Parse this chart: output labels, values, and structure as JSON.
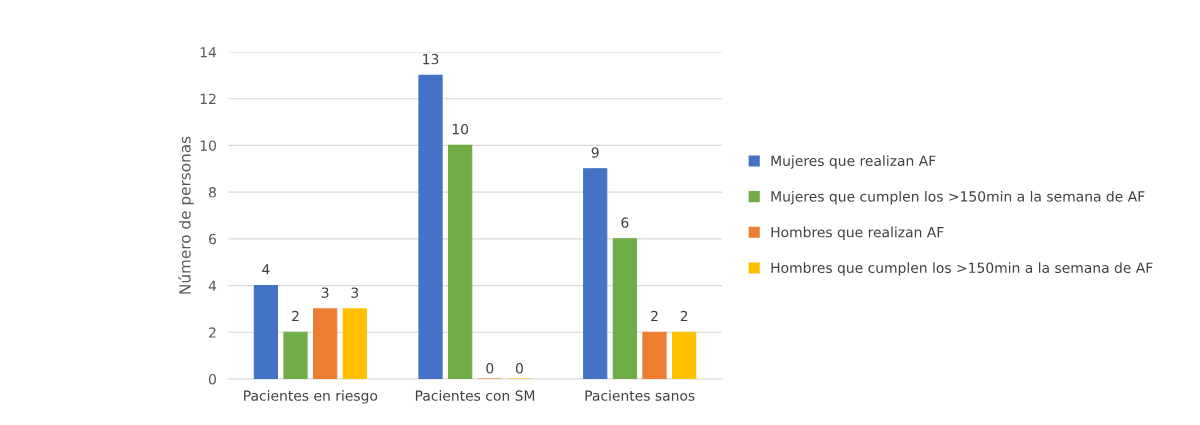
{
  "chart_data": {
    "type": "bar",
    "ylabel": "Número de personas",
    "categories": [
      "Pacientes en riesgo",
      "Pacientes con SM",
      "Pacientes sanos"
    ],
    "series": [
      {
        "name": "Mujeres que realizan AF",
        "color": "#4472c4",
        "values": [
          4,
          13,
          9
        ]
      },
      {
        "name": "Mujeres que cumplen los >150min a la semana de AF",
        "color": "#70ad47",
        "values": [
          2,
          10,
          6
        ]
      },
      {
        "name": "Hombres que realizan AF",
        "color": "#ed7d31",
        "values": [
          3,
          0,
          2
        ]
      },
      {
        "name": "Hombres que cumplen los >150min a la semana de AF",
        "color": "#ffc000",
        "values": [
          3,
          0,
          2
        ]
      }
    ],
    "ylim": [
      0,
      14
    ],
    "yticks": [
      0,
      2,
      4,
      6,
      8,
      10,
      12,
      14
    ],
    "grid": "y",
    "legend": "right",
    "data_labels": true
  }
}
